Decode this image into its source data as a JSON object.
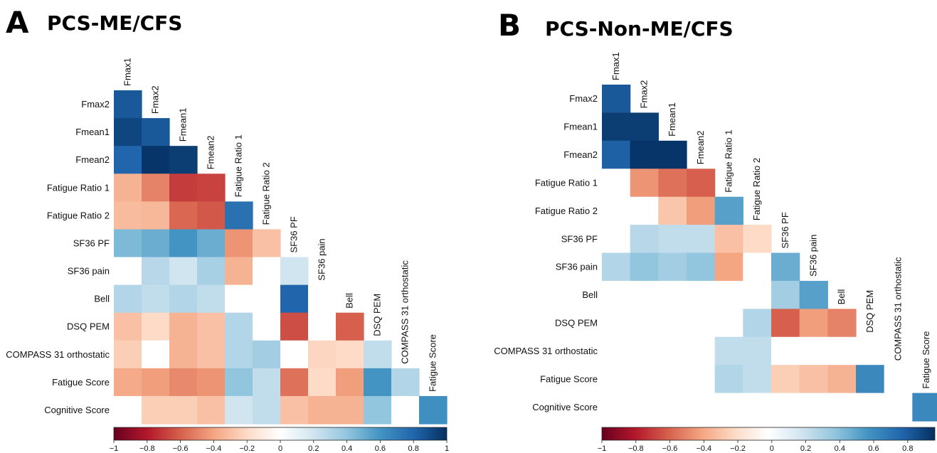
{
  "chart_data": [
    {
      "type": "heatmap",
      "panel_letter": "A",
      "title": "PCS-ME/CFS",
      "variables": [
        "Fmax1",
        "Fmax2",
        "Fmean1",
        "Fmean2",
        "Fatigue Ratio 1",
        "Fatigue Ratio 2",
        "SF36 PF",
        "SF36 pain",
        "Bell",
        "DSQ PEM",
        "COMPASS 31 orthostatic",
        "Fatigue Score",
        "Cognitive Score"
      ],
      "matrix": [
        [
          0.85
        ],
        [
          0.92,
          0.85
        ],
        [
          0.8,
          0.98,
          0.95
        ],
        [
          -0.35,
          -0.5,
          -0.7,
          -0.68
        ],
        [
          -0.32,
          -0.33,
          -0.58,
          -0.62,
          0.75
        ],
        [
          0.45,
          0.5,
          0.6,
          0.5,
          -0.45,
          -0.3
        ],
        [
          0.0,
          0.28,
          0.2,
          0.33,
          -0.35,
          0.0,
          0.2
        ],
        [
          0.3,
          0.25,
          0.3,
          0.25,
          0.0,
          0.0,
          0.8,
          0.0
        ],
        [
          -0.3,
          -0.2,
          -0.35,
          -0.3,
          0.3,
          0.0,
          -0.65,
          0.0,
          -0.6
        ],
        [
          -0.25,
          0.0,
          -0.35,
          -0.3,
          0.3,
          0.35,
          0.0,
          -0.22,
          -0.2,
          0.25
        ],
        [
          -0.38,
          -0.42,
          -0.48,
          -0.45,
          0.4,
          0.25,
          -0.55,
          -0.2,
          -0.42,
          0.6,
          0.3
        ],
        [
          0.0,
          -0.25,
          -0.25,
          -0.3,
          0.2,
          0.25,
          -0.3,
          -0.35,
          -0.35,
          0.4,
          0.0,
          0.62
        ]
      ],
      "colorbar": {
        "min": -1,
        "max": 1,
        "ticks": [
          "−1",
          "−0.8",
          "−0.6",
          "−0.4",
          "−0.2",
          "0",
          "0.2",
          "0.4",
          "0.6",
          "0.8",
          "1"
        ]
      }
    },
    {
      "type": "heatmap",
      "panel_letter": "B",
      "title": "PCS-Non-ME/CFS",
      "variables": [
        "Fmax1",
        "Fmax2",
        "Fmean1",
        "Fmean2",
        "Fatigue Ratio 1",
        "Fatigue Ratio 2",
        "SF36 PF",
        "SF36 pain",
        "Bell",
        "DSQ PEM",
        "COMPASS 31 orthostatic",
        "Fatigue Score",
        "Cognitive Score"
      ],
      "matrix": [
        [
          0.85
        ],
        [
          0.95,
          0.95
        ],
        [
          0.82,
          0.98,
          0.98
        ],
        [
          0.0,
          -0.45,
          -0.55,
          -0.6
        ],
        [
          0.0,
          0.0,
          -0.28,
          -0.42,
          0.55
        ],
        [
          0.0,
          0.28,
          0.25,
          0.25,
          -0.3,
          -0.2
        ],
        [
          0.3,
          0.4,
          0.35,
          0.4,
          -0.4,
          0.0,
          0.5
        ],
        [
          0.0,
          0.0,
          0.0,
          0.0,
          0.0,
          0.0,
          0.35,
          0.55
        ],
        [
          0.0,
          0.0,
          0.0,
          0.0,
          0.0,
          0.3,
          -0.6,
          -0.42,
          -0.5
        ],
        [
          0.0,
          0.0,
          0.0,
          0.0,
          0.25,
          0.25,
          0.0,
          0.0,
          0.0,
          0.0
        ],
        [
          0.0,
          0.0,
          0.0,
          0.0,
          0.3,
          0.25,
          -0.25,
          -0.3,
          -0.35,
          0.65,
          0.0
        ],
        [
          0.0,
          0.0,
          0.0,
          0.0,
          0.0,
          0.0,
          0.0,
          0.0,
          0.0,
          0.0,
          0.0,
          0.65
        ]
      ],
      "colorbar": {
        "min": -1,
        "max": 0.96,
        "ticks": [
          "−1",
          "−0.8",
          "−0.6",
          "−0.4",
          "−0.2",
          "0",
          "0.2",
          "0.4",
          "0.6",
          "0.8"
        ]
      }
    }
  ]
}
